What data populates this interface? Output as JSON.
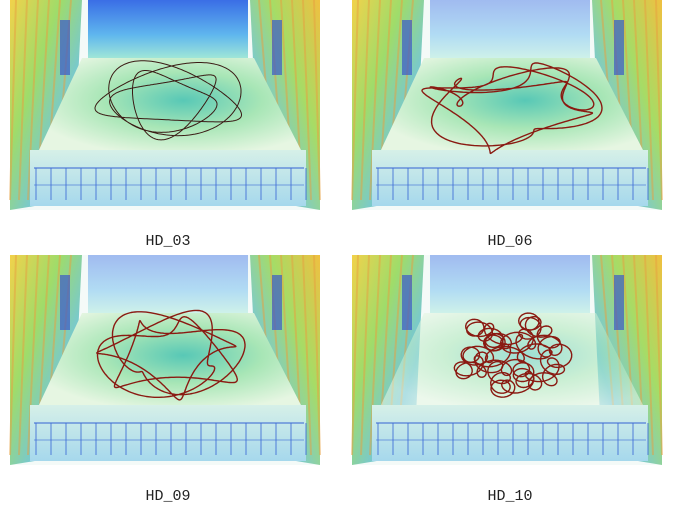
{
  "panels": [
    {
      "label": "HD_03"
    },
    {
      "label": "HD_06"
    },
    {
      "label": "HD_09"
    },
    {
      "label": "HD_10"
    }
  ]
}
